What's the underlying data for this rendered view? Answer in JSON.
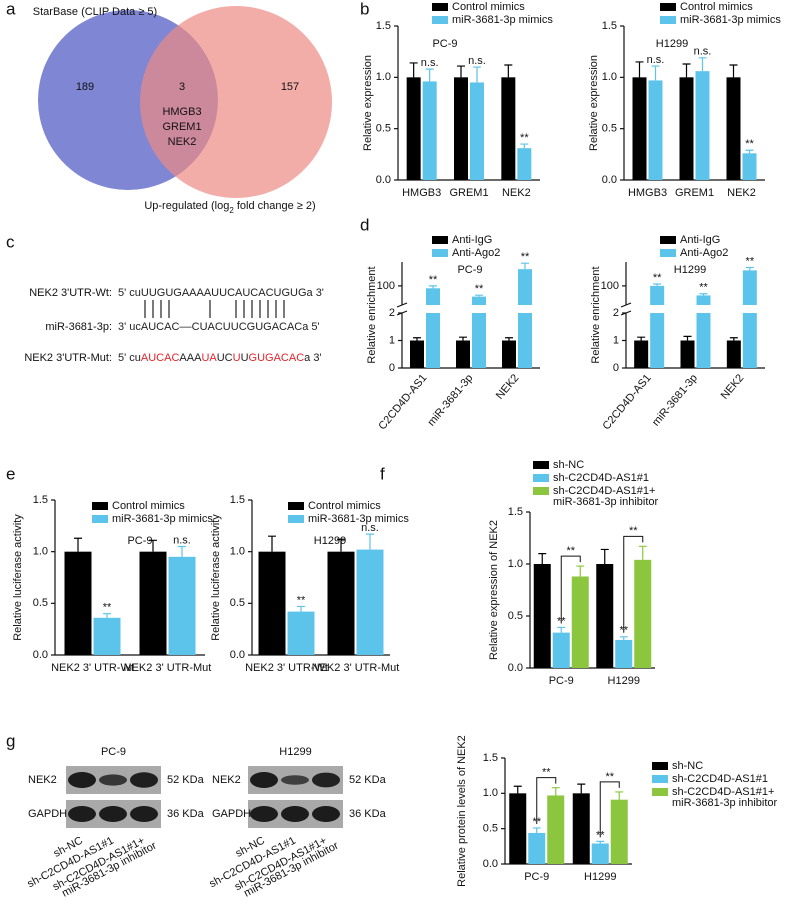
{
  "panel_labels": [
    "a",
    "b",
    "c",
    "d",
    "e",
    "f",
    "g"
  ],
  "venn": {
    "sets": [
      {
        "label": "StarBase (CLIP Data ≥ 5)",
        "color": "#7f86d4"
      },
      {
        "label_parts": [
          "Up-regulated (log",
          "2",
          " fold change ≥ 2)"
        ],
        "color": "#ee8a84"
      }
    ],
    "counts": [
      189,
      3,
      157
    ],
    "overlap_genes": [
      "HMGB3",
      "GREM1",
      "NEK2"
    ]
  },
  "sequences": [
    {
      "label": "NEK2 3'UTR-Wt:",
      "segments": [
        {
          "text": "5' cuUUGUGAAAAUUCAUCACUGUGa 3'",
          "color": "#222222"
        }
      ]
    },
    {
      "label": "miR-3681-3p:",
      "segments": [
        {
          "text": "3' ucAUCAC––CUACUUCGUGACACa 5'",
          "color": "#222222"
        }
      ]
    },
    {
      "label": "NEK2 3'UTR-Mut:",
      "segments": [
        {
          "text": "5' cu",
          "color": "#222222"
        },
        {
          "text": "AUCAC",
          "color": "#e3242b"
        },
        {
          "text": "AAA",
          "color": "#222222"
        },
        {
          "text": "UA",
          "color": "#e3242b"
        },
        {
          "text": "UC",
          "color": "#222222"
        },
        {
          "text": "U",
          "color": "#e3242b"
        },
        {
          "text": "U",
          "color": "#222222"
        },
        {
          "text": "GUGACAC",
          "color": "#e3242b"
        },
        {
          "text": "a  3'",
          "color": "#222222"
        }
      ]
    }
  ],
  "chart_data": [
    {
      "type": "bar",
      "title": "PC-9",
      "ylabel": "Relative expression",
      "categories": [
        "HMGB3",
        "GREM1",
        "NEK2"
      ],
      "series": [
        {
          "name": "Control mimics",
          "color": "#000000",
          "values": [
            1,
            1,
            1
          ],
          "errors": [
            0.14,
            0.11,
            0.12
          ]
        },
        {
          "name": "miR-3681-3p mimics",
          "color": "#5cc3ea",
          "values": [
            0.96,
            0.95,
            0.31
          ],
          "errors": [
            0.12,
            0.15,
            0.04
          ],
          "significance": [
            "n.s.",
            "n.s.",
            "**"
          ]
        }
      ],
      "ylim": [
        0,
        1.5
      ],
      "yticks": [
        {
          "value": 0,
          "label": "0.0"
        },
        {
          "value": 0.5,
          "label": "0.5"
        },
        {
          "value": 1,
          "label": "1.0"
        },
        {
          "value": 1.5,
          "label": "1.5"
        }
      ]
    },
    {
      "type": "bar",
      "title": "H1299",
      "ylabel": "Relative expression",
      "categories": [
        "HMGB3",
        "GREM1",
        "NEK2"
      ],
      "series": [
        {
          "name": "Control mimics",
          "color": "#000000",
          "values": [
            1,
            1,
            1
          ],
          "errors": [
            0.15,
            0.13,
            0.12
          ]
        },
        {
          "name": "miR-3681-3p mimics",
          "color": "#5cc3ea",
          "values": [
            0.97,
            1.06,
            0.26
          ],
          "errors": [
            0.14,
            0.13,
            0.03
          ],
          "significance": [
            "n.s.",
            "n.s.",
            "**"
          ]
        }
      ],
      "ylim": [
        0,
        1.5
      ],
      "yticks": [
        {
          "value": 0,
          "label": "0.0"
        },
        {
          "value": 0.5,
          "label": "0.5"
        },
        {
          "value": 1,
          "label": "1.0"
        },
        {
          "value": 1.5,
          "label": "1.5"
        }
      ]
    },
    {
      "type": "bar",
      "title": "PC-9",
      "ylabel": "Relative enrichment",
      "categories": [
        "C2CD4D-AS1",
        "miR-3681-3p",
        "NEK2"
      ],
      "series": [
        {
          "name": "Anti-IgG",
          "color": "#000000",
          "values": [
            1,
            1,
            1
          ],
          "errors": [
            0.1,
            0.12,
            0.1
          ]
        },
        {
          "name": "Anti-Ago2",
          "color": "#5cc3ea",
          "values": [
            90,
            55,
            170
          ],
          "errors": [
            10,
            6,
            25
          ],
          "significance": [
            "**",
            "**",
            "**"
          ]
        }
      ],
      "broken_axis": true,
      "ylim": [
        0,
        2
      ],
      "yticks": [
        0,
        1,
        2
      ],
      "ylim_upper": [
        20,
        200
      ],
      "yticks_upper": [
        100
      ]
    },
    {
      "type": "bar",
      "title": "H1299",
      "ylabel": "Relative enrichment",
      "categories": [
        "C2CD4D-AS1",
        "miR-3681-3p",
        "NEK2"
      ],
      "series": [
        {
          "name": "Anti-IgG",
          "color": "#000000",
          "values": [
            1,
            1,
            1
          ],
          "errors": [
            0.12,
            0.15,
            0.1
          ]
        },
        {
          "name": "Anti-Ago2",
          "color": "#5cc3ea",
          "values": [
            100,
            60,
            165
          ],
          "errors": [
            8,
            7,
            12
          ],
          "significance": [
            "**",
            "**",
            "**"
          ]
        }
      ],
      "broken_axis": true,
      "ylim": [
        0,
        2
      ],
      "yticks": [
        0,
        1,
        2
      ],
      "ylim_upper": [
        20,
        200
      ],
      "yticks_upper": [
        100
      ]
    },
    {
      "type": "bar",
      "title": "PC-9",
      "ylabel": "Relative luciferase activity",
      "categories": [
        "NEK2 3' UTR-Wt",
        "NEK2 3' UTR-Mut"
      ],
      "series": [
        {
          "name": "Control mimics",
          "color": "#000000",
          "values": [
            1,
            1
          ],
          "errors": [
            0.13,
            0.11
          ]
        },
        {
          "name": "miR-3681-3p mimics",
          "color": "#5cc3ea",
          "values": [
            0.36,
            0.95
          ],
          "errors": [
            0.04,
            0.1
          ],
          "significance": [
            "**",
            "n.s."
          ]
        }
      ],
      "ylim": [
        0,
        1.5
      ],
      "yticks": [
        {
          "value": 0,
          "label": "0.0"
        },
        {
          "value": 0.5,
          "label": "0.5"
        },
        {
          "value": 1,
          "label": "1.0"
        },
        {
          "value": 1.5,
          "label": "1.5"
        }
      ]
    },
    {
      "type": "bar",
      "title": "H1299",
      "ylabel": "Relative luciferase activity",
      "categories": [
        "NEK2 3' UTR-Wt",
        "NEK2 3' UTR-Mut"
      ],
      "series": [
        {
          "name": "Control mimics",
          "color": "#000000",
          "values": [
            1,
            1
          ],
          "errors": [
            0.15,
            0.12
          ]
        },
        {
          "name": "miR-3681-3p mimics",
          "color": "#5cc3ea",
          "values": [
            0.42,
            1.02
          ],
          "errors": [
            0.05,
            0.15
          ],
          "significance": [
            "**",
            "n.s."
          ]
        }
      ],
      "ylim": [
        0,
        1.5
      ],
      "yticks": [
        {
          "value": 0,
          "label": "0.0"
        },
        {
          "value": 0.5,
          "label": "0.5"
        },
        {
          "value": 1,
          "label": "1.0"
        },
        {
          "value": 1.5,
          "label": "1.5"
        }
      ]
    },
    {
      "type": "bar",
      "ylabel": "Relative expression of NEK2",
      "categories": [
        "PC-9",
        "H1299"
      ],
      "brackets": true,
      "series": [
        {
          "name": "sh-NC",
          "color": "#000000",
          "values": [
            1,
            1
          ],
          "errors": [
            0.1,
            0.14
          ]
        },
        {
          "name": "sh-C2CD4D-AS1#1",
          "color": "#5cc3ea",
          "values": [
            0.34,
            0.27
          ],
          "errors": [
            0.05,
            0.03
          ],
          "significance": [
            "**",
            "**"
          ]
        },
        {
          "name": "sh-C2CD4D-AS1#1+ miR-3681-3p inhibitor",
          "color": "#8cc63f",
          "values": [
            0.88,
            1.04
          ],
          "errors": [
            0.1,
            0.13
          ],
          "significance": [
            "**",
            "**"
          ]
        }
      ],
      "ylim": [
        0,
        1.5
      ],
      "yticks": [
        {
          "value": 0,
          "label": "0.0"
        },
        {
          "value": 0.5,
          "label": "0.5"
        },
        {
          "value": 1,
          "label": "1.0"
        },
        {
          "value": 1.5,
          "label": "1.5"
        }
      ]
    },
    {
      "type": "bar",
      "ylabel": "Relative protein levels of NEK2",
      "categories": [
        "PC-9",
        "H1299"
      ],
      "brackets": true,
      "series": [
        {
          "name": "sh-NC",
          "color": "#000000",
          "values": [
            1,
            1
          ],
          "errors": [
            0.1,
            0.13
          ]
        },
        {
          "name": "sh-C2CD4D-AS1#1",
          "color": "#5cc3ea",
          "values": [
            0.44,
            0.29
          ],
          "errors": [
            0.07,
            0.03
          ],
          "significance": [
            "**",
            "**"
          ]
        },
        {
          "name": "sh-C2CD4D-AS1#1+ miR-3681-3p inhibitor",
          "color": "#8cc63f",
          "values": [
            0.97,
            0.91
          ],
          "errors": [
            0.11,
            0.11
          ],
          "significance": [
            "**",
            "**"
          ]
        }
      ],
      "ylim": [
        0,
        1.5
      ],
      "yticks": [
        {
          "value": 0,
          "label": "0.0"
        },
        {
          "value": 0.5,
          "label": "0.5"
        },
        {
          "value": 1,
          "label": "1.0"
        },
        {
          "value": 1.5,
          "label": "1.5"
        }
      ]
    }
  ],
  "blots": [
    {
      "title": "PC-9",
      "rows": [
        {
          "label": "NEK2",
          "size": "52 KDa"
        },
        {
          "label": "GAPDH",
          "size": "36 KDa"
        }
      ],
      "lanes": [
        [
          "sh-NC"
        ],
        [
          "sh-C2CD4D-AS1#1"
        ],
        [
          "sh-C2CD4D-AS1#1+",
          "miR-3681-3p inhibitor"
        ]
      ]
    },
    {
      "title": "H1299",
      "rows": [
        {
          "label": "NEK2",
          "size": "52 KDa"
        },
        {
          "label": "GAPDH",
          "size": "36 KDa"
        }
      ],
      "lanes": [
        [
          "sh-NC"
        ],
        [
          "sh-C2CD4D-AS1#1"
        ],
        [
          "sh-C2CD4D-AS1#1+",
          "miR-3681-3p inhibitor"
        ]
      ]
    }
  ]
}
